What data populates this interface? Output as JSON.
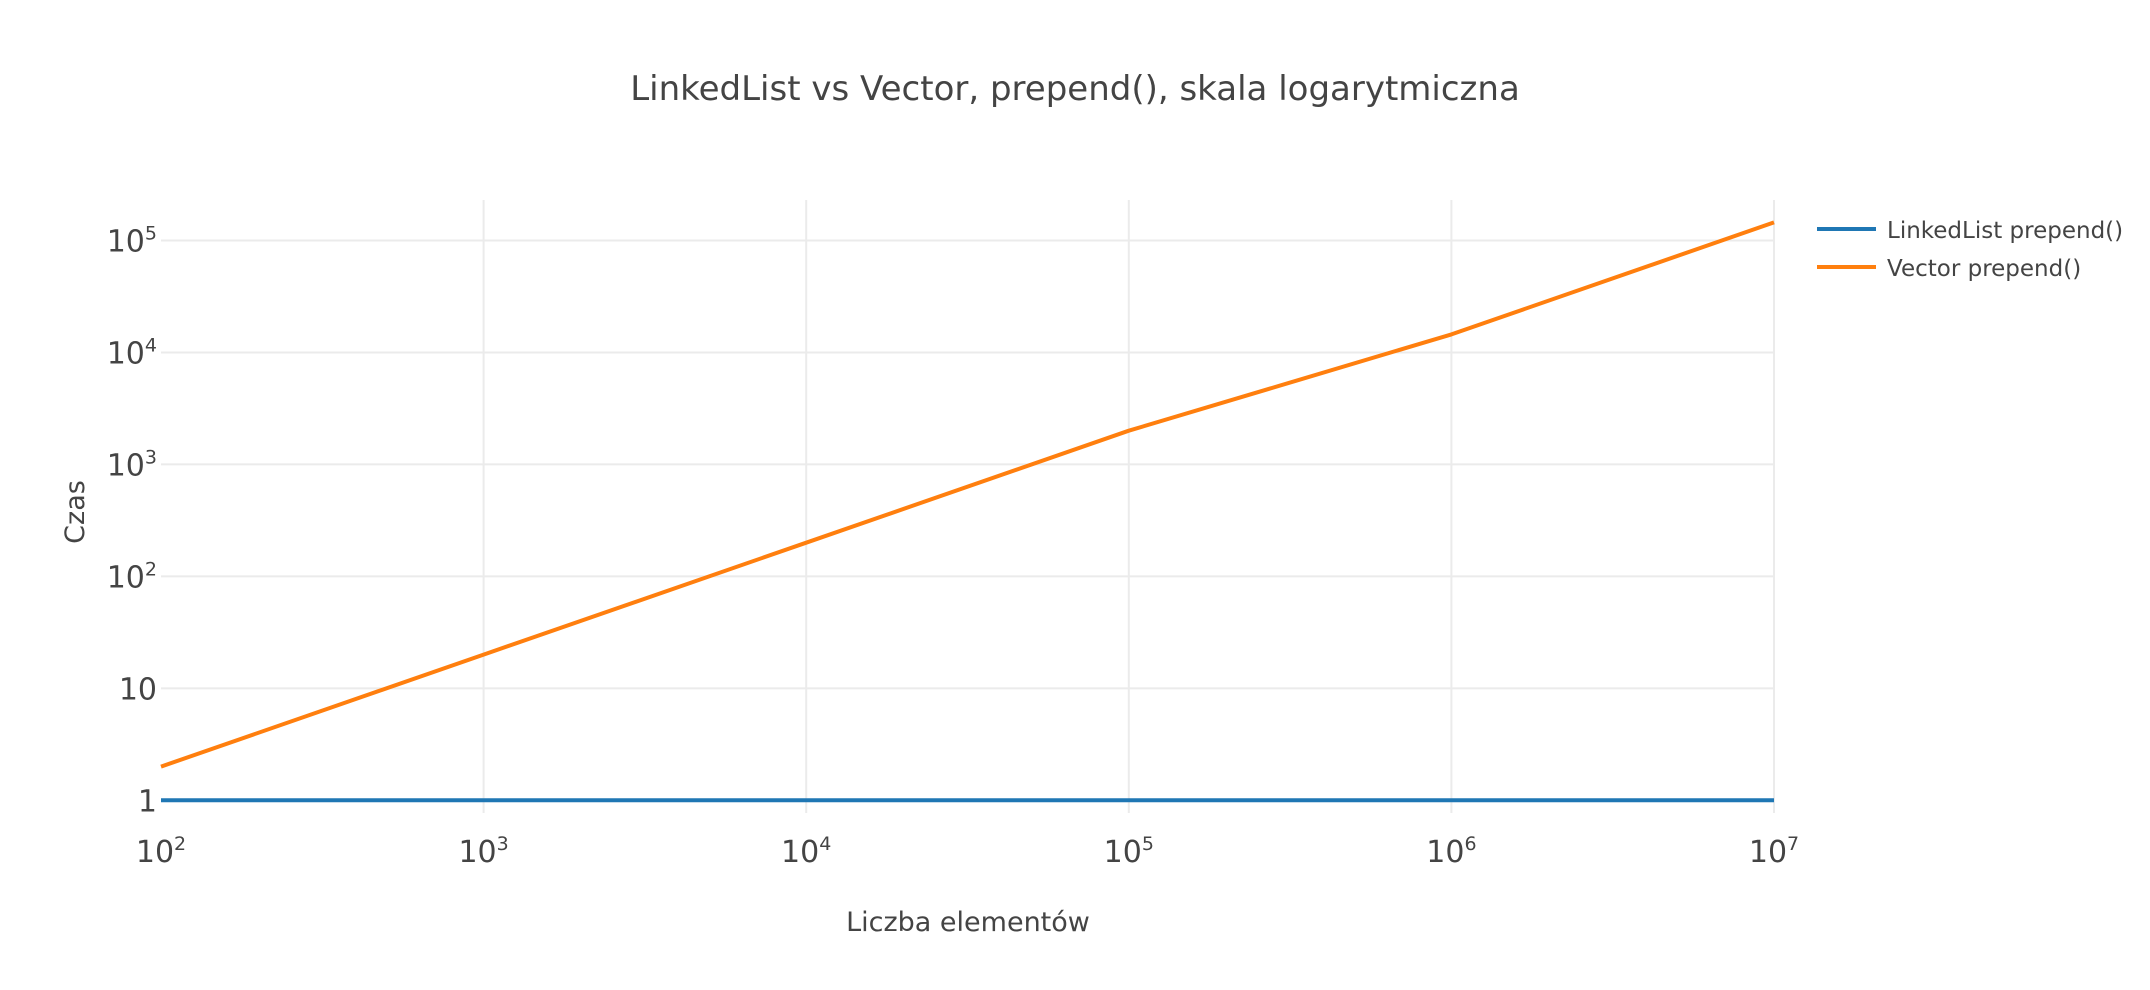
{
  "chart_data": {
    "type": "line",
    "title": "LinkedList vs Vector, prepend(), skala logarytmiczna",
    "xlabel": "Liczba elementów",
    "ylabel": "Czas",
    "x_scale": "log",
    "y_scale": "log",
    "xlim": [
      100,
      10000000
    ],
    "ylim": [
      0.77,
      230000
    ],
    "grid": true,
    "legend_position": "top-right",
    "x_ticks": [
      {
        "base": "10",
        "exp": "2",
        "value": 100
      },
      {
        "base": "10",
        "exp": "3",
        "value": 1000
      },
      {
        "base": "10",
        "exp": "4",
        "value": 10000
      },
      {
        "base": "10",
        "exp": "5",
        "value": 100000
      },
      {
        "base": "10",
        "exp": "6",
        "value": 1000000
      },
      {
        "base": "10",
        "exp": "7",
        "value": 10000000
      }
    ],
    "y_ticks": [
      {
        "base": "1",
        "exp": "",
        "value": 1
      },
      {
        "base": "10",
        "exp": "",
        "value": 10
      },
      {
        "base": "10",
        "exp": "2",
        "value": 100
      },
      {
        "base": "10",
        "exp": "3",
        "value": 1000
      },
      {
        "base": "10",
        "exp": "4",
        "value": 10000
      },
      {
        "base": "10",
        "exp": "5",
        "value": 100000
      }
    ],
    "x": [
      100,
      1000,
      10000,
      100000,
      1000000,
      10000000
    ],
    "series": [
      {
        "name": "LinkedList prepend()",
        "color": "#1f77b4",
        "values": [
          1,
          1,
          1,
          1,
          1,
          1
        ]
      },
      {
        "name": "Vector prepend()",
        "color": "#ff7f0e",
        "values": [
          2,
          20,
          200,
          2000,
          14500,
          145000
        ]
      }
    ]
  }
}
